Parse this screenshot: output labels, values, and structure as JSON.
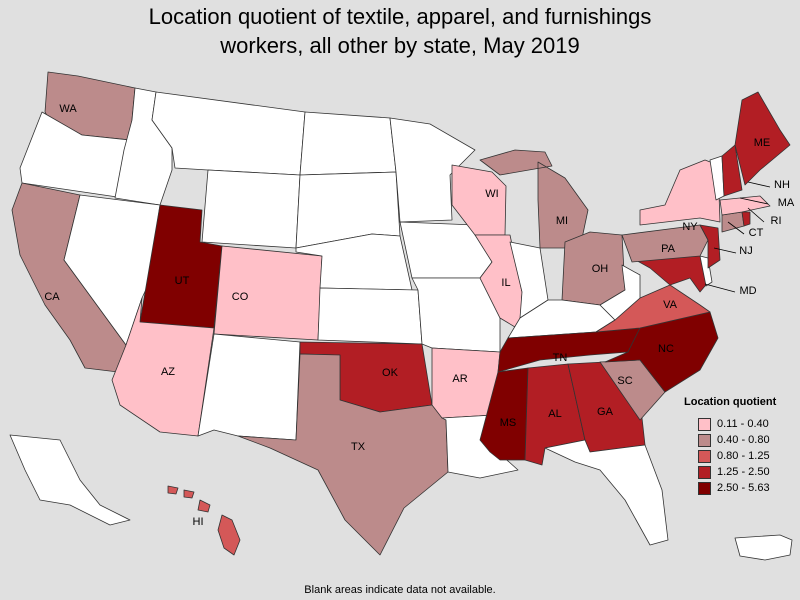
{
  "title_line1": "Location quotient of textile, apparel, and furnishings",
  "title_line2": "workers, all other by state, May 2019",
  "note": "Blank areas indicate data not available.",
  "legend": {
    "title": "Location quotient",
    "items": [
      {
        "label": "0.11 - 0.40",
        "color": "#ffc0c8"
      },
      {
        "label": "0.40 - 0.80",
        "color": "#bc8b8b"
      },
      {
        "label": "0.80 - 1.25",
        "color": "#d45858"
      },
      {
        "label": "1.25 - 2.50",
        "color": "#b21e24"
      },
      {
        "label": "2.50 - 5.63",
        "color": "#800000"
      }
    ]
  },
  "no_data_color": "#ffffff",
  "states": {
    "WA": {
      "bin": 1
    },
    "CA": {
      "bin": 1
    },
    "UT": {
      "bin": 4
    },
    "CO": {
      "bin": 0
    },
    "AZ": {
      "bin": 0
    },
    "TX": {
      "bin": 1
    },
    "OK": {
      "bin": 3
    },
    "AR": {
      "bin": 0
    },
    "MS": {
      "bin": 4
    },
    "AL": {
      "bin": 3
    },
    "GA": {
      "bin": 3
    },
    "TN": {
      "bin": 4
    },
    "NC": {
      "bin": 4
    },
    "SC": {
      "bin": 1
    },
    "VA": {
      "bin": 2
    },
    "WI": {
      "bin": 0
    },
    "IL": {
      "bin": 0
    },
    "MI": {
      "bin": 1
    },
    "OH": {
      "bin": 1
    },
    "PA": {
      "bin": 1
    },
    "NY": {
      "bin": 0
    },
    "NJ": {
      "bin": 3
    },
    "MD": {
      "bin": 3
    },
    "CT": {
      "bin": 1
    },
    "RI": {
      "bin": 3
    },
    "MA": {
      "bin": 0
    },
    "NH": {
      "bin": 3
    },
    "ME": {
      "bin": 3
    },
    "HI": {
      "bin": 2
    }
  },
  "labels": [
    "WA",
    "CA",
    "UT",
    "CO",
    "AZ",
    "TX",
    "OK",
    "AR",
    "MS",
    "AL",
    "GA",
    "TN",
    "NC",
    "SC",
    "VA",
    "WI",
    "IL",
    "MI",
    "OH",
    "PA",
    "NY",
    "NJ",
    "MD",
    "CT",
    "RI",
    "MA",
    "NH",
    "ME",
    "HI"
  ]
}
